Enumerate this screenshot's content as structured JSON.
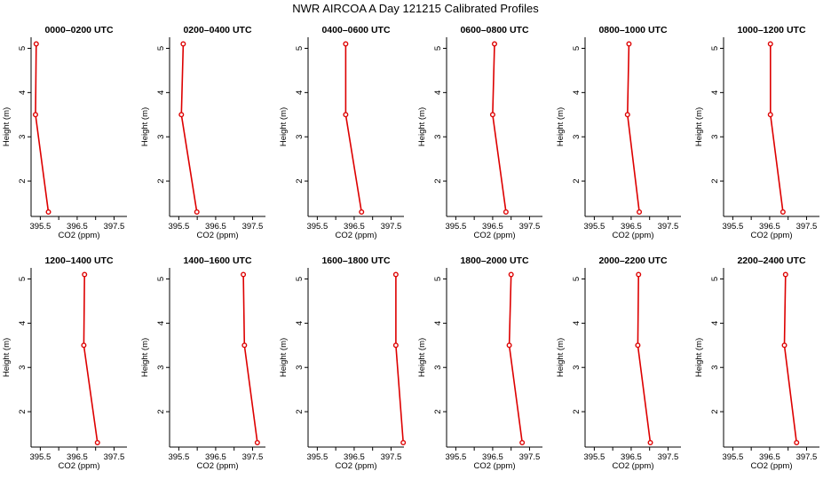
{
  "page": {
    "title": "NWR AIRCOA A  Day 121215  Calibrated Profiles"
  },
  "colors": {
    "series": "#dd0000",
    "axis": "#000000"
  },
  "chart_data": {
    "type": "line",
    "title": "NWR AIRCOA A  Day 121215  Calibrated Profiles",
    "xlabel": "CO2 (ppm)",
    "ylabel": "Height (m)",
    "xlim": [
      395.25,
      397.85
    ],
    "ylim": [
      1.2,
      5.25
    ],
    "xticks": [
      "395.5",
      "396.5",
      "397.5"
    ],
    "xtick_values": [
      395.5,
      396.5,
      397.5
    ],
    "yticks": [
      "2",
      "3",
      "4",
      "5"
    ],
    "ytick_values": [
      2,
      3,
      4,
      5
    ],
    "heights": [
      5.1,
      3.5,
      1.3
    ],
    "grid": false,
    "panels": [
      {
        "title": "0000–0200 UTC",
        "x": [
          395.39,
          395.37,
          395.72
        ]
      },
      {
        "title": "0200–0400 UTC",
        "x": [
          395.62,
          395.57,
          395.99
        ]
      },
      {
        "title": "0400–0600 UTC",
        "x": [
          396.27,
          396.27,
          396.7
        ]
      },
      {
        "title": "0600–0800 UTC",
        "x": [
          396.55,
          396.5,
          396.86
        ]
      },
      {
        "title": "0800–1000 UTC",
        "x": [
          396.44,
          396.4,
          396.72
        ]
      },
      {
        "title": "1000–1200 UTC",
        "x": [
          396.52,
          396.52,
          396.86
        ]
      },
      {
        "title": "1200–1400 UTC",
        "x": [
          396.7,
          396.68,
          397.05
        ]
      },
      {
        "title": "1400–1600 UTC",
        "x": [
          397.25,
          397.28,
          397.63
        ]
      },
      {
        "title": "1600–1800 UTC",
        "x": [
          397.63,
          397.63,
          397.83
        ]
      },
      {
        "title": "1800–2000 UTC",
        "x": [
          397.0,
          396.95,
          397.3
        ]
      },
      {
        "title": "2000–2200 UTC",
        "x": [
          396.7,
          396.68,
          397.02
        ]
      },
      {
        "title": "2200–2400 UTC",
        "x": [
          396.93,
          396.9,
          397.23
        ]
      }
    ]
  }
}
